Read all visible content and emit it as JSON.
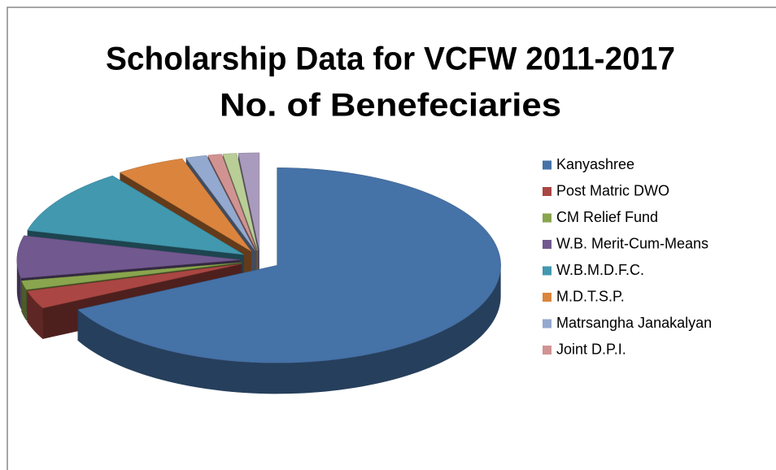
{
  "chart_data": {
    "type": "pie3d",
    "title": "Scholarship Data for VCFW 2011-2017",
    "subtitle": "No. of Benefeciaries",
    "categories": [
      "Kanyashree",
      "Post Matric DWO",
      "CM Relief Fund",
      "W.B. Merit-Cum-Means",
      "W.B.M.D.F.C.",
      "M.D.T.S.P.",
      "Matrsangha Janakalyan",
      "Joint D.P.I.",
      null,
      null
    ],
    "values": [
      67.5,
      3,
      1.5,
      7,
      11,
      5,
      1.5,
      1,
      1,
      1.5
    ],
    "colors": [
      "#4572a7",
      "#aa4643",
      "#89a54e",
      "#71588f",
      "#4198af",
      "#db843d",
      "#93a9cf",
      "#d19392",
      "#b9cd96",
      "#a99bbd"
    ]
  }
}
